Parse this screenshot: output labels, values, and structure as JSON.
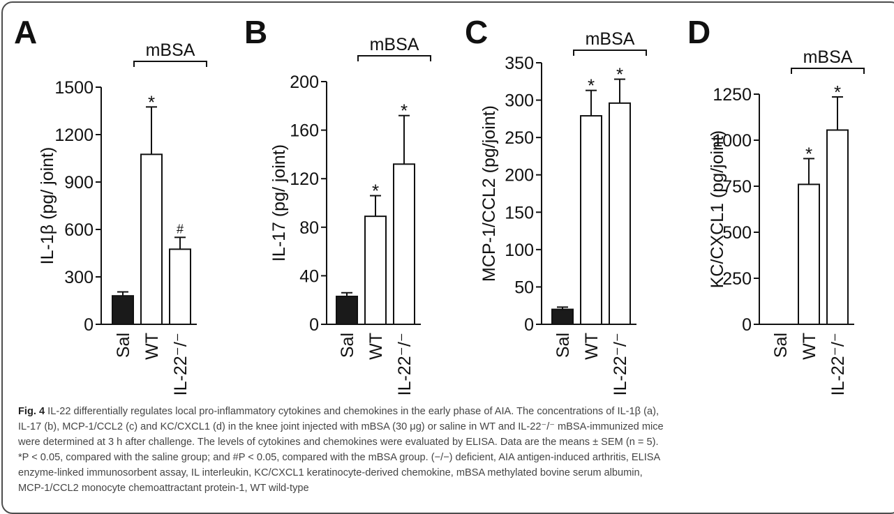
{
  "chart_data": [
    {
      "type": "bar",
      "panel_label": "A",
      "ylabel": "IL-1β (pg/ joint)",
      "ylim": [
        0,
        1500
      ],
      "yticks": [
        "0",
        "300",
        "600",
        "900",
        "1200",
        "1500"
      ],
      "categories": [
        "Sal",
        "WT",
        "IL-22⁻/⁻"
      ],
      "values": [
        180,
        1075,
        475
      ],
      "errors": [
        25,
        300,
        75
      ],
      "bar_fill": [
        "#1a1a1a",
        "#ffffff",
        "#ffffff"
      ],
      "annotations": [
        "",
        "*",
        "#"
      ],
      "bracket_label": "mBSA"
    },
    {
      "type": "bar",
      "panel_label": "B",
      "ylabel": "IL-17 (pg/ joint)",
      "ylim": [
        0,
        200
      ],
      "yticks": [
        "0",
        "40",
        "80",
        "120",
        "160",
        "200"
      ],
      "categories": [
        "Sal",
        "WT",
        "IL-22⁻/⁻"
      ],
      "values": [
        23,
        89,
        132
      ],
      "errors": [
        3,
        17,
        40
      ],
      "bar_fill": [
        "#1a1a1a",
        "#ffffff",
        "#ffffff"
      ],
      "annotations": [
        "",
        "*",
        "*"
      ],
      "bracket_label": "mBSA"
    },
    {
      "type": "bar",
      "panel_label": "C",
      "ylabel": "MCP-1/CCL2 (pg/joint)",
      "ylim": [
        0,
        350
      ],
      "yticks": [
        "0",
        "50",
        "100",
        "150",
        "200",
        "250",
        "300",
        "350"
      ],
      "categories": [
        "Sal",
        "WT",
        "IL-22⁻/⁻"
      ],
      "values": [
        20,
        279,
        296
      ],
      "errors": [
        3,
        34,
        32
      ],
      "bar_fill": [
        "#1a1a1a",
        "#ffffff",
        "#ffffff"
      ],
      "annotations": [
        "",
        "*",
        "*"
      ],
      "bracket_label": "mBSA"
    },
    {
      "type": "bar",
      "panel_label": "D",
      "ylabel": "KC/CXCL1 (pg/joint)",
      "ylim": [
        0,
        1250
      ],
      "yticks": [
        "0",
        "250",
        "500",
        "750",
        "1000",
        "1250"
      ],
      "categories": [
        "Sal",
        "WT",
        "IL-22⁻/⁻"
      ],
      "values": [
        0,
        760,
        1055
      ],
      "errors": [
        0,
        140,
        180
      ],
      "bar_fill": [
        "#1a1a1a",
        "#ffffff",
        "#ffffff"
      ],
      "annotations": [
        "",
        "*",
        "*"
      ],
      "bracket_label": "mBSA"
    }
  ],
  "caption": {
    "lead": "Fig. 4",
    "lines": [
      "IL-22 differentially regulates local pro-inflammatory cytokines and chemokines in the early phase of AIA. The concentrations of IL-1β (a),",
      "IL-17 (b), MCP-1/CCL2 (c) and KC/CXCL1 (d) in the knee joint injected with mBSA (30 μg) or saline in WT and IL-22⁻/⁻ mBSA-immunized mice",
      "were determined at 3 h after challenge. The levels of cytokines and chemokines were evaluated by ELISA. Data are the means ± SEM (n = 5).",
      "*P < 0.05, compared with the saline group; and #P < 0.05, compared with the mBSA group. (−/−) deficient, AIA antigen-induced arthritis, ELISA",
      "enzyme-linked immunosorbent assay, IL interleukin, KC/CXCL1 keratinocyte-derived chemokine, mBSA methylated bovine serum albumin,",
      "MCP-1/CCL2 monocyte chemoattractant protein-1, WT wild-type"
    ]
  }
}
